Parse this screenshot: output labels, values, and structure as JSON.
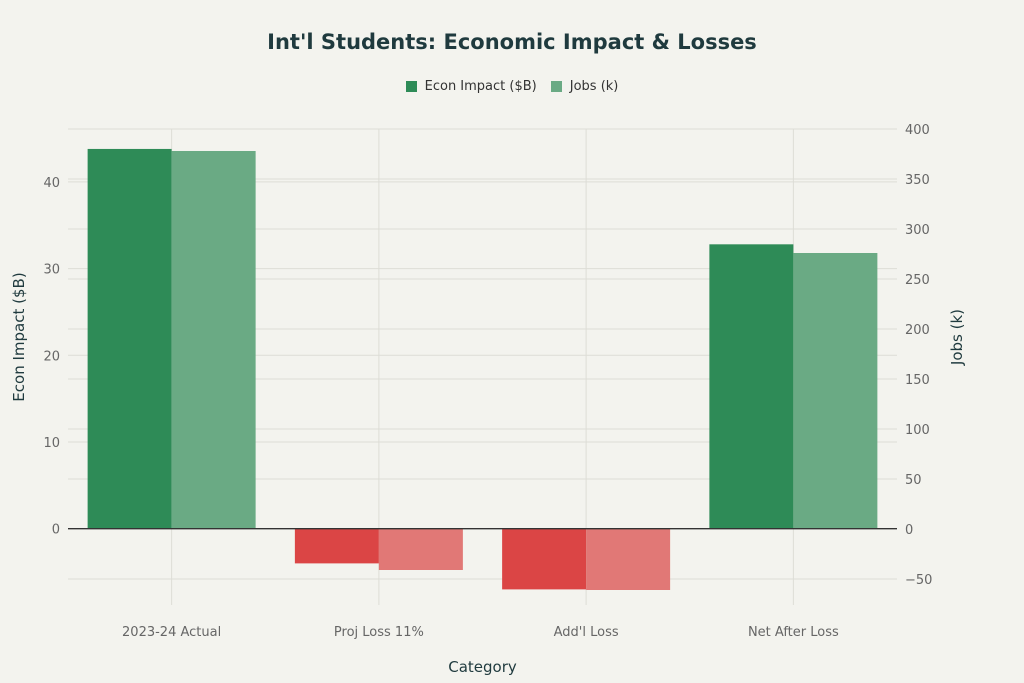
{
  "chart_data": {
    "type": "bar",
    "title": "Int'l Students: Economic Impact & Losses",
    "xlabel": "Category",
    "ylabel": "Econ Impact ($B)",
    "y2label": "Jobs (k)",
    "categories": [
      "2023-24 Actual",
      "Proj Loss 11%",
      "Add'l Loss",
      "Net After Loss"
    ],
    "series": [
      {
        "name": "Econ Impact ($B)",
        "axis": "left",
        "values": [
          43.8,
          -4.0,
          -7.0,
          32.8
        ]
      },
      {
        "name": "Jobs (k)",
        "axis": "right",
        "values": [
          378,
          -41,
          -61,
          276
        ]
      }
    ],
    "ylim": [
      -8.8,
      46.1
    ],
    "y2lim": [
      -76,
      400
    ],
    "yticks": [
      0,
      10,
      20,
      30,
      40
    ],
    "y2ticks": [
      -50,
      0,
      50,
      100,
      150,
      200,
      250,
      300,
      350,
      400
    ],
    "grid": true,
    "legend": "top-center",
    "colors": {
      "econ_positive": "#2E8B57",
      "jobs_positive": "#6AAA84",
      "econ_negative": "#DB4545",
      "jobs_negative": "#E17876"
    }
  }
}
